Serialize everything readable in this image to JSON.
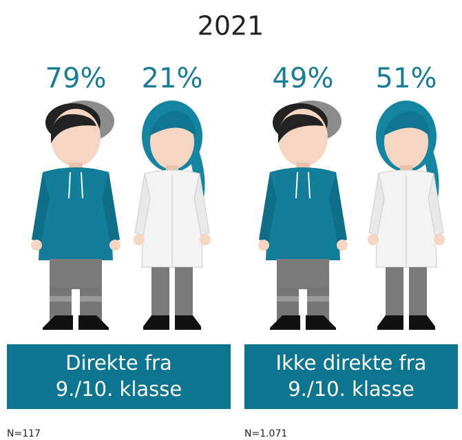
{
  "title": "2021",
  "groups": [
    {
      "figures": [
        {
          "percent": "79%"
        },
        {
          "percent": "21%"
        }
      ],
      "label": [
        "Direkte fra",
        "9./10. klasse"
      ],
      "n": "N=117"
    },
    {
      "figures": [
        {
          "percent": "49%"
        },
        {
          "percent": "51%"
        }
      ],
      "label": [
        "Ikke direkte fra",
        "9./10. klasse"
      ],
      "n": "N=1.071"
    }
  ]
}
